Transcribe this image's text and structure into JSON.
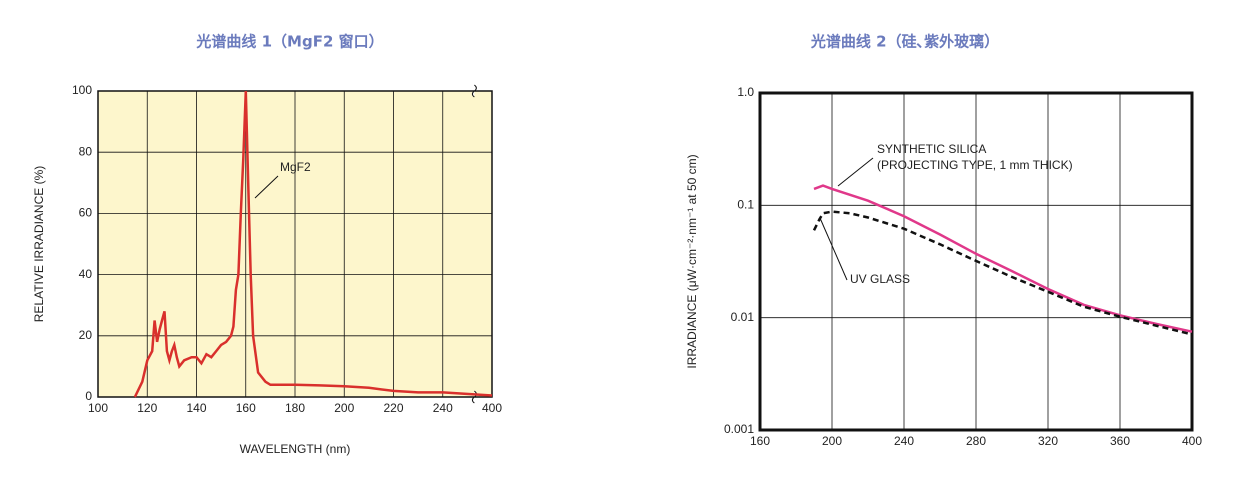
{
  "chart_data": [
    {
      "type": "line",
      "title": "光谱曲线 1（MgF2 窗口）",
      "xlabel": "WAVELENGTH (nm)",
      "ylabel": "RELATIVE IRRADIANCE (%)",
      "xlim": [
        100,
        400
      ],
      "xticks": [
        100,
        120,
        140,
        160,
        180,
        200,
        220,
        240,
        400
      ],
      "x_break": true,
      "ylim": [
        0,
        100
      ],
      "yticks": [
        0,
        20,
        40,
        60,
        80,
        100
      ],
      "grid": true,
      "background": "#fdf6cc",
      "series": [
        {
          "name": "MgF2",
          "color": "#d9302c",
          "x": [
            115,
            118,
            120,
            122,
            123,
            124,
            125,
            126,
            127,
            128,
            129,
            130,
            131,
            132,
            133,
            135,
            138,
            140,
            142,
            144,
            146,
            148,
            150,
            152,
            154,
            155,
            156,
            157,
            158,
            159,
            160,
            161,
            162,
            163,
            165,
            168,
            170,
            180,
            190,
            200,
            210,
            220,
            230,
            240,
            400
          ],
          "values": [
            0,
            5,
            12,
            15,
            25,
            18,
            22,
            25,
            28,
            15,
            12,
            15,
            17,
            13,
            10,
            12,
            13,
            13,
            11,
            14,
            13,
            15,
            17,
            18,
            20,
            23,
            35,
            40,
            60,
            78,
            100,
            70,
            40,
            20,
            8,
            5,
            4,
            4,
            3.8,
            3.5,
            3,
            2,
            1.5,
            1.5,
            0.5
          ]
        }
      ]
    },
    {
      "type": "line",
      "title": "光谱曲线 2（硅､紫外玻璃）",
      "ylabel": "IRRADIANCE (μW·cm⁻²·nm⁻¹ at 50 cm)",
      "xlim": [
        160,
        400
      ],
      "xticks": [
        160,
        200,
        240,
        280,
        320,
        360,
        400
      ],
      "ylim": [
        0.001,
        1
      ],
      "yticks": [
        0.001,
        0.01,
        0.1,
        {
          "value": 1,
          "label": "1.0"
        }
      ],
      "log_y": true,
      "grid": true,
      "background": "#ffffff",
      "annotations": [
        "(PROJECTING TYPE, 1 mm THICK)"
      ],
      "series": [
        {
          "name": "SYNTHETIC SILICA",
          "color": "#e0388a",
          "x": [
            190,
            195,
            200,
            220,
            240,
            260,
            280,
            300,
            320,
            340,
            360,
            380,
            400
          ],
          "values": [
            0.14,
            0.15,
            0.14,
            0.11,
            0.08,
            0.055,
            0.037,
            0.026,
            0.018,
            0.013,
            0.0105,
            0.0088,
            0.0075
          ]
        },
        {
          "name": "UV GLASS",
          "color": "#111111",
          "dashed": true,
          "x": [
            190,
            193,
            195,
            200,
            210,
            220,
            240,
            260,
            280,
            300,
            320,
            340,
            360,
            380,
            400
          ],
          "values": [
            0.06,
            0.075,
            0.085,
            0.088,
            0.085,
            0.078,
            0.062,
            0.045,
            0.032,
            0.023,
            0.017,
            0.0125,
            0.0102,
            0.0085,
            0.0071
          ]
        }
      ]
    }
  ]
}
